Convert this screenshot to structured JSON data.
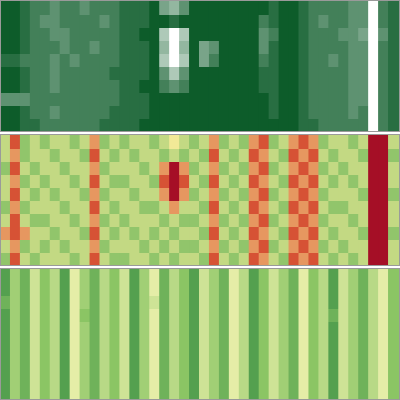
{
  "chart_data": [
    {
      "type": "heatmap",
      "tick_labels": false,
      "zlim": [
        0,
        9
      ],
      "cells": [
        [
          0,
          0,
          1,
          2,
          2,
          3,
          2,
          2,
          3,
          2,
          2,
          2,
          1,
          1,
          1,
          0,
          4,
          5,
          3,
          0,
          0,
          0,
          0,
          0,
          0,
          0,
          0,
          1,
          0,
          0,
          1,
          2,
          2,
          2,
          2,
          3,
          3,
          9,
          2,
          1
        ],
        [
          0,
          0,
          1,
          2,
          3,
          3,
          2,
          2,
          2,
          2,
          3,
          2,
          1,
          1,
          1,
          0,
          0,
          1,
          0,
          0,
          0,
          0,
          0,
          0,
          0,
          0,
          2,
          1,
          0,
          0,
          1,
          2,
          3,
          2,
          2,
          3,
          3,
          9,
          2,
          1
        ],
        [
          0,
          0,
          1,
          2,
          2,
          3,
          3,
          2,
          2,
          2,
          2,
          2,
          1,
          1,
          0,
          0,
          6,
          9,
          6,
          0,
          0,
          0,
          0,
          0,
          0,
          0,
          3,
          2,
          0,
          0,
          1,
          2,
          2,
          2,
          3,
          3,
          4,
          9,
          3,
          1
        ],
        [
          0,
          0,
          1,
          2,
          2,
          2,
          3,
          2,
          2,
          3,
          2,
          2,
          1,
          1,
          1,
          0,
          5,
          9,
          5,
          0,
          4,
          3,
          0,
          0,
          0,
          0,
          3,
          1,
          0,
          0,
          1,
          2,
          2,
          2,
          2,
          3,
          3,
          9,
          2,
          1
        ],
        [
          1,
          1,
          2,
          2,
          2,
          3,
          2,
          3,
          2,
          2,
          2,
          2,
          1,
          1,
          1,
          0,
          6,
          9,
          6,
          0,
          4,
          2,
          0,
          0,
          0,
          0,
          2,
          1,
          0,
          0,
          1,
          2,
          2,
          3,
          2,
          3,
          3,
          9,
          2,
          1
        ],
        [
          0,
          0,
          1,
          2,
          2,
          3,
          2,
          2,
          2,
          2,
          2,
          1,
          1,
          1,
          1,
          0,
          3,
          6,
          3,
          0,
          0,
          0,
          0,
          0,
          0,
          0,
          1,
          1,
          0,
          0,
          1,
          2,
          2,
          2,
          2,
          3,
          3,
          9,
          2,
          1
        ],
        [
          0,
          0,
          1,
          2,
          2,
          3,
          2,
          2,
          2,
          2,
          2,
          2,
          1,
          1,
          0,
          0,
          2,
          3,
          2,
          0,
          0,
          0,
          0,
          0,
          0,
          0,
          1,
          1,
          0,
          0,
          1,
          2,
          2,
          2,
          2,
          3,
          3,
          9,
          2,
          1
        ],
        [
          3,
          3,
          3,
          2,
          2,
          2,
          2,
          2,
          2,
          2,
          2,
          2,
          1,
          1,
          1,
          0,
          0,
          0,
          0,
          0,
          0,
          0,
          0,
          0,
          0,
          0,
          0,
          1,
          0,
          0,
          1,
          2,
          2,
          2,
          2,
          3,
          3,
          9,
          2,
          1
        ],
        [
          0,
          0,
          1,
          2,
          2,
          3,
          2,
          2,
          2,
          2,
          2,
          1,
          1,
          1,
          1,
          0,
          0,
          0,
          0,
          0,
          0,
          0,
          0,
          0,
          0,
          0,
          0,
          1,
          0,
          0,
          1,
          2,
          2,
          2,
          2,
          3,
          2,
          9,
          2,
          1
        ],
        [
          0,
          0,
          1,
          1,
          2,
          2,
          2,
          2,
          2,
          2,
          1,
          1,
          1,
          1,
          0,
          0,
          0,
          0,
          0,
          0,
          0,
          0,
          0,
          0,
          0,
          0,
          0,
          0,
          0,
          0,
          1,
          1,
          2,
          2,
          2,
          2,
          2,
          9,
          2,
          1
        ]
      ]
    },
    {
      "type": "heatmap",
      "tick_labels": false,
      "zlim": [
        0,
        9
      ],
      "cells": [
        [
          4,
          7,
          3,
          4,
          3,
          4,
          4,
          3,
          4,
          6,
          3,
          4,
          3,
          4,
          4,
          3,
          4,
          5,
          4,
          3,
          4,
          6,
          3,
          4,
          3,
          6,
          7,
          3,
          4,
          6,
          7,
          6,
          3,
          4,
          4,
          3,
          4,
          9,
          9,
          4
        ],
        [
          4,
          6,
          3,
          4,
          4,
          3,
          4,
          4,
          3,
          7,
          4,
          3,
          4,
          3,
          4,
          4,
          3,
          4,
          3,
          4,
          3,
          7,
          4,
          3,
          4,
          7,
          6,
          4,
          3,
          7,
          6,
          7,
          4,
          3,
          4,
          4,
          3,
          9,
          9,
          3
        ],
        [
          3,
          7,
          4,
          3,
          4,
          4,
          3,
          4,
          4,
          6,
          3,
          4,
          4,
          4,
          3,
          4,
          6,
          9,
          6,
          3,
          4,
          6,
          3,
          4,
          3,
          6,
          7,
          3,
          4,
          6,
          7,
          6,
          3,
          4,
          3,
          4,
          4,
          9,
          9,
          4
        ],
        [
          4,
          6,
          3,
          4,
          3,
          4,
          4,
          3,
          4,
          7,
          4,
          3,
          3,
          4,
          4,
          3,
          7,
          9,
          7,
          4,
          3,
          7,
          4,
          3,
          4,
          7,
          6,
          4,
          3,
          7,
          6,
          7,
          4,
          3,
          4,
          3,
          4,
          9,
          9,
          4
        ],
        [
          4,
          7,
          4,
          3,
          4,
          3,
          4,
          4,
          3,
          6,
          3,
          4,
          4,
          3,
          4,
          4,
          6,
          9,
          6,
          3,
          4,
          6,
          3,
          4,
          3,
          6,
          7,
          3,
          4,
          6,
          7,
          6,
          3,
          4,
          4,
          4,
          3,
          9,
          9,
          3
        ],
        [
          3,
          6,
          3,
          4,
          4,
          4,
          3,
          4,
          4,
          7,
          4,
          3,
          4,
          4,
          3,
          3,
          4,
          6,
          4,
          4,
          3,
          7,
          4,
          3,
          4,
          7,
          6,
          4,
          3,
          7,
          6,
          7,
          4,
          3,
          3,
          4,
          4,
          9,
          9,
          4
        ],
        [
          4,
          7,
          4,
          3,
          3,
          4,
          4,
          3,
          4,
          6,
          3,
          4,
          3,
          4,
          4,
          4,
          3,
          4,
          3,
          3,
          4,
          6,
          3,
          4,
          3,
          6,
          7,
          3,
          4,
          6,
          7,
          6,
          3,
          4,
          4,
          3,
          4,
          9,
          9,
          4
        ],
        [
          6,
          7,
          6,
          4,
          4,
          3,
          4,
          4,
          3,
          7,
          4,
          3,
          4,
          3,
          4,
          3,
          4,
          3,
          4,
          4,
          3,
          7,
          4,
          3,
          4,
          7,
          6,
          4,
          3,
          7,
          6,
          7,
          4,
          3,
          4,
          4,
          3,
          9,
          9,
          3
        ],
        [
          4,
          6,
          3,
          4,
          3,
          4,
          3,
          4,
          4,
          6,
          3,
          4,
          4,
          4,
          3,
          4,
          3,
          4,
          3,
          3,
          4,
          6,
          3,
          4,
          3,
          6,
          7,
          3,
          4,
          6,
          7,
          6,
          3,
          4,
          3,
          4,
          4,
          9,
          9,
          4
        ],
        [
          3,
          7,
          4,
          3,
          4,
          4,
          4,
          3,
          4,
          7,
          4,
          3,
          3,
          4,
          4,
          3,
          4,
          3,
          4,
          4,
          3,
          7,
          4,
          3,
          4,
          7,
          6,
          4,
          3,
          7,
          6,
          7,
          4,
          3,
          4,
          3,
          4,
          9,
          9,
          4
        ]
      ]
    },
    {
      "type": "heatmap",
      "tick_labels": false,
      "zlim": [
        0,
        9
      ],
      "cells": [
        [
          2,
          5,
          3,
          7,
          4,
          6,
          2,
          8,
          5,
          3,
          6,
          4,
          7,
          2,
          5,
          8,
          3,
          6,
          4,
          2,
          7,
          5,
          3,
          8,
          6,
          2,
          4,
          7,
          5,
          3,
          8,
          4,
          6,
          2,
          7,
          5,
          3,
          6,
          8,
          4
        ],
        [
          2,
          5,
          3,
          7,
          4,
          6,
          2,
          8,
          5,
          3,
          6,
          4,
          7,
          2,
          5,
          8,
          3,
          6,
          4,
          2,
          7,
          5,
          3,
          8,
          6,
          2,
          4,
          7,
          5,
          3,
          8,
          4,
          6,
          2,
          7,
          5,
          3,
          6,
          8,
          4
        ],
        [
          3,
          5,
          3,
          7,
          4,
          6,
          2,
          8,
          5,
          3,
          6,
          4,
          7,
          2,
          5,
          7,
          3,
          6,
          4,
          2,
          7,
          5,
          3,
          8,
          6,
          2,
          4,
          7,
          5,
          3,
          8,
          4,
          6,
          2,
          7,
          5,
          3,
          6,
          8,
          4
        ],
        [
          2,
          5,
          3,
          7,
          4,
          6,
          2,
          8,
          4,
          3,
          6,
          4,
          7,
          2,
          5,
          8,
          3,
          6,
          4,
          2,
          7,
          5,
          3,
          8,
          6,
          2,
          4,
          7,
          5,
          3,
          8,
          4,
          6,
          3,
          7,
          5,
          3,
          6,
          8,
          4
        ],
        [
          2,
          5,
          3,
          7,
          4,
          6,
          2,
          8,
          5,
          3,
          6,
          4,
          7,
          2,
          5,
          8,
          3,
          6,
          4,
          2,
          7,
          5,
          3,
          8,
          6,
          2,
          4,
          7,
          5,
          3,
          8,
          4,
          6,
          2,
          7,
          5,
          3,
          6,
          8,
          4
        ],
        [
          2,
          5,
          3,
          7,
          4,
          6,
          2,
          8,
          5,
          3,
          6,
          4,
          7,
          2,
          5,
          8,
          3,
          6,
          4,
          2,
          7,
          5,
          3,
          8,
          6,
          2,
          4,
          7,
          5,
          3,
          8,
          4,
          6,
          2,
          7,
          5,
          3,
          6,
          8,
          4
        ],
        [
          2,
          5,
          3,
          7,
          4,
          6,
          2,
          8,
          5,
          3,
          6,
          4,
          7,
          2,
          5,
          8,
          3,
          6,
          4,
          2,
          7,
          5,
          3,
          8,
          6,
          2,
          4,
          7,
          5,
          3,
          8,
          4,
          6,
          2,
          7,
          5,
          3,
          6,
          8,
          4
        ],
        [
          2,
          5,
          3,
          7,
          4,
          6,
          2,
          8,
          5,
          3,
          6,
          4,
          7,
          2,
          5,
          8,
          3,
          6,
          4,
          2,
          7,
          5,
          3,
          8,
          6,
          2,
          4,
          7,
          5,
          3,
          8,
          4,
          6,
          2,
          7,
          5,
          3,
          6,
          8,
          4
        ],
        [
          2,
          5,
          3,
          7,
          4,
          6,
          2,
          8,
          5,
          3,
          6,
          4,
          7,
          2,
          5,
          8,
          3,
          6,
          4,
          2,
          7,
          5,
          3,
          8,
          6,
          2,
          4,
          7,
          5,
          3,
          8,
          4,
          6,
          2,
          7,
          5,
          3,
          6,
          8,
          4
        ],
        [
          2,
          5,
          3,
          7,
          4,
          6,
          2,
          8,
          5,
          3,
          6,
          4,
          7,
          2,
          5,
          8,
          3,
          6,
          4,
          2,
          7,
          5,
          3,
          8,
          6,
          2,
          4,
          7,
          5,
          3,
          8,
          4,
          6,
          2,
          7,
          5,
          3,
          6,
          8,
          4
        ]
      ]
    }
  ]
}
